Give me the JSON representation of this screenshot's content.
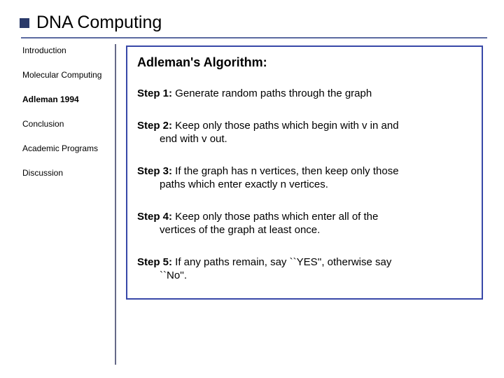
{
  "title": "DNA Computing",
  "accent_color": "#2a3a6a",
  "rule_color": "#5b6aa0",
  "box_border_color": "#3848a8",
  "sidebar": {
    "items": [
      {
        "label": "Introduction",
        "active": false
      },
      {
        "label": "Molecular Computing",
        "active": false
      },
      {
        "label": "Adleman 1994",
        "active": true
      },
      {
        "label": "Conclusion",
        "active": false
      },
      {
        "label": "Academic Programs",
        "active": false
      },
      {
        "label": "Discussion",
        "active": false
      }
    ]
  },
  "content": {
    "heading": "Adleman's Algorithm:",
    "steps": [
      {
        "label": "Step 1:",
        "text_first": " Generate random paths through the graph",
        "text_rest": ""
      },
      {
        "label": "Step 2:",
        "text_first": " Keep only those paths which begin with v in and",
        "text_rest": "end with v out."
      },
      {
        "label": "Step 3:",
        "text_first": " If the graph has n vertices, then keep only those",
        "text_rest": "paths which enter exactly n vertices."
      },
      {
        "label": "Step 4:",
        "text_first": " Keep only those paths which enter all of the",
        "text_rest": "vertices of the graph at least once."
      },
      {
        "label": "Step 5:",
        "text_first": " If any paths remain, say ``YES'', otherwise say",
        "text_rest": "``No''."
      }
    ]
  }
}
